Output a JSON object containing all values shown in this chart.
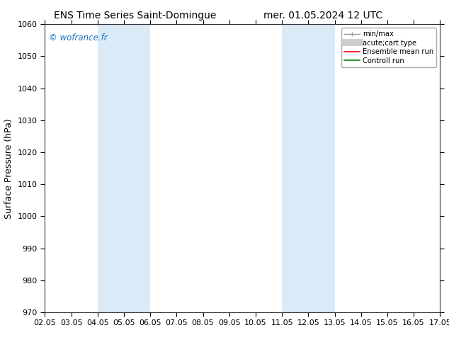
{
  "title_left": "ENS Time Series Saint-Domingue",
  "title_right": "mer. 01.05.2024 12 UTC",
  "ylabel": "Surface Pressure (hPa)",
  "ylim": [
    970,
    1060
  ],
  "yticks": [
    970,
    980,
    990,
    1000,
    1010,
    1020,
    1030,
    1040,
    1050,
    1060
  ],
  "xlabels": [
    "02.05",
    "03.05",
    "04.05",
    "05.05",
    "06.05",
    "07.05",
    "08.05",
    "09.05",
    "10.05",
    "11.05",
    "12.05",
    "13.05",
    "14.05",
    "15.05",
    "16.05",
    "17.05"
  ],
  "shade_bands_labels": [
    [
      "04.05",
      "06.05"
    ],
    [
      "11.05",
      "13.05"
    ]
  ],
  "shade_color": "#daeaf7",
  "watermark": "© wofrance.fr",
  "watermark_color": "#1a6fc4",
  "legend_entries": [
    {
      "label": "min/max",
      "color": "#888888",
      "lw": 1
    },
    {
      "label": "acute;cart type",
      "color": "#cccccc",
      "lw": 6
    },
    {
      "label": "Ensemble mean run",
      "color": "#ff0000",
      "lw": 1.5
    },
    {
      "label": "Controll run",
      "color": "#008000",
      "lw": 1.5
    }
  ],
  "bg_color": "#ffffff",
  "title_fontsize": 10,
  "axis_fontsize": 9,
  "tick_fontsize": 8
}
